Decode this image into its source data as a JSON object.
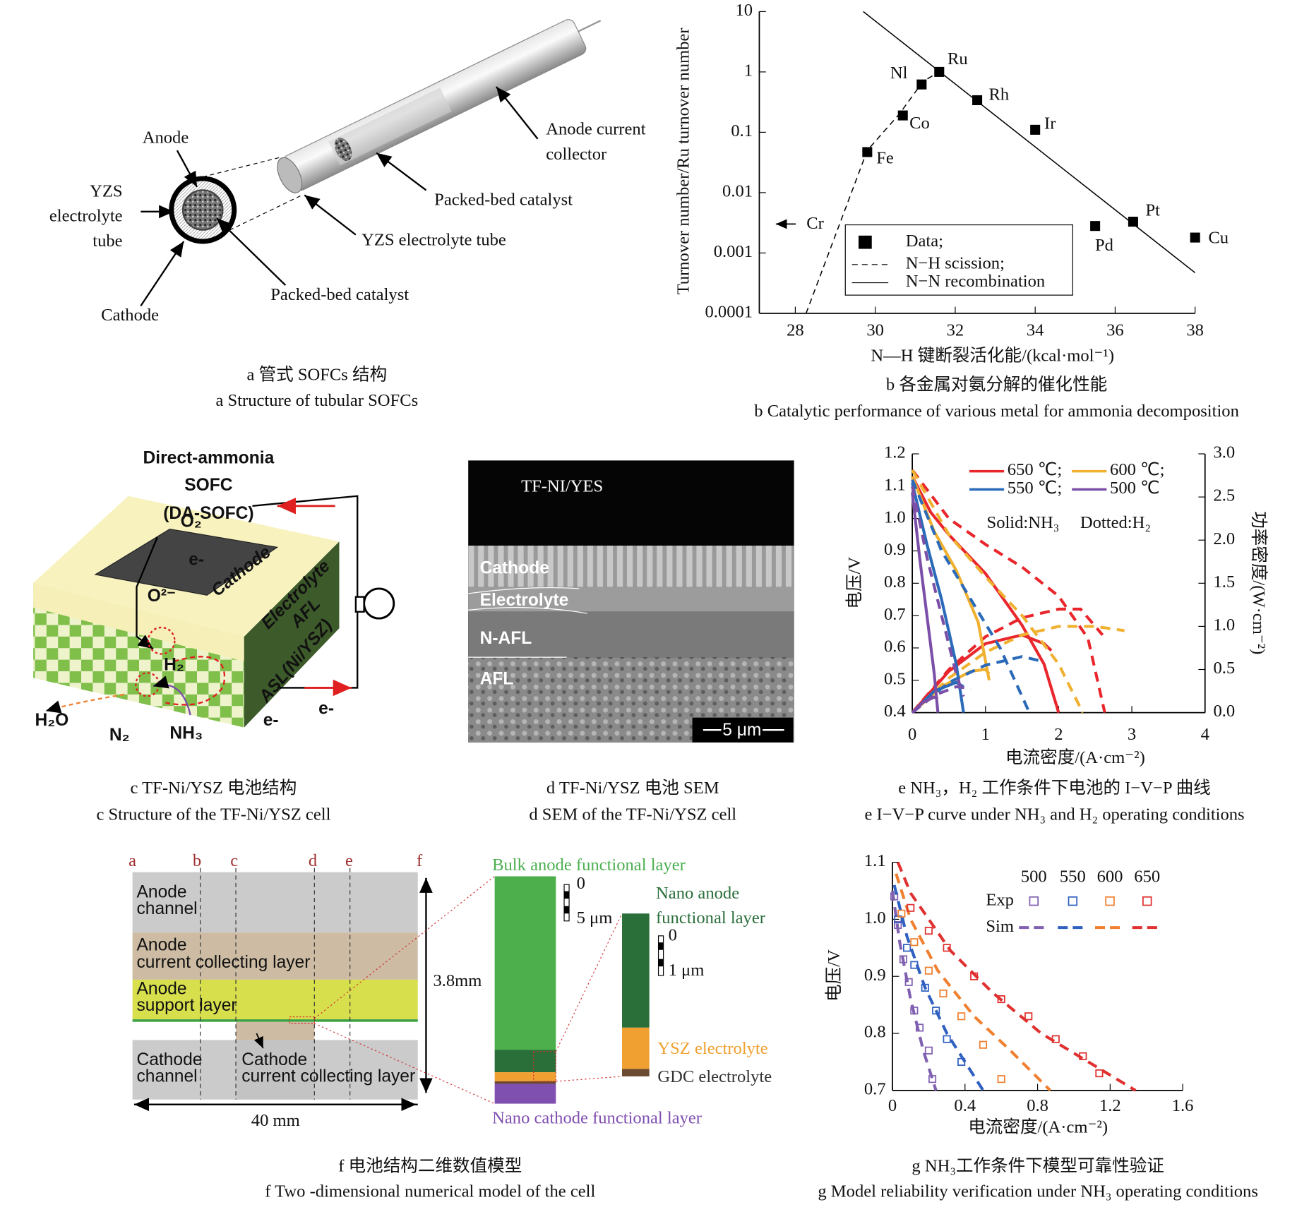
{
  "panels": {
    "a": {
      "labels": [
        "Anode",
        "YZS",
        "electrolyte",
        "tube",
        "Cathode",
        "Anode current",
        "collector",
        "Packed-bed catalyst",
        "YZS electrolyte tube",
        "Packed-bed catalyst"
      ],
      "caption_zh": "a  管式 SOFCs 结构",
      "caption_en": "a  Structure of tubular SOFCs"
    },
    "c": {
      "labels": [
        "Direct-ammonia",
        "SOFC",
        "(DA-SOFC)",
        "O₂",
        "e-",
        "Cathode",
        "Electrolyte",
        "AFL",
        "ASL(Ni/YSZ)",
        "O²⁻",
        "H₂",
        "H₂O",
        "N₂",
        "NH₃",
        "e-",
        "e-"
      ],
      "caption_zh": "c  TF-Ni/YSZ 电池结构",
      "caption_en": "c  Structure of the TF-Ni/YSZ cell"
    },
    "d": {
      "labels": [
        "TF-NI/YES",
        "Cathode",
        "Electrolyte",
        "N-AFL",
        "AFL",
        "5 μm"
      ],
      "caption_zh": "d  TF-Ni/YSZ 电池 SEM",
      "caption_en": "d  SEM of the TF-Ni/YSZ cell"
    },
    "f": {
      "letters": [
        "a",
        "b",
        "c",
        "d",
        "e",
        "f"
      ],
      "labels": [
        "Anode",
        "channel",
        "Anode",
        "current collecting layer",
        "Anode",
        "support layer",
        "Cathode",
        "channel",
        "Cathode",
        "current collecting layer",
        "3.8mm",
        "40 mm",
        "Bulk anode functional layer",
        "0",
        "5 μm",
        "Nano anode",
        "functional layer",
        "0",
        "1 μm",
        "YSZ electrolyte",
        "GDC electrolyte",
        "Nano cathode functional layer"
      ],
      "caption_zh": "f  电池结构二维数值模型",
      "caption_en": "f  Two -dimensional numerical model of the cell"
    }
  },
  "chart_data": [
    {
      "type": "scatter",
      "caption_zh": "b  各金属对氨分解的催化性能",
      "caption_en": "b  Catalytic performance of various metal for ammonia decomposition",
      "x_axis_label": "N—H 键断裂活化能/(kcal·mol⁻¹)",
      "y_axis_label": "Turnover number/Ru turnover number",
      "annotation": "Cr",
      "xlim": [
        27.1,
        38
      ],
      "xticks": [
        28,
        30,
        32,
        34,
        36,
        38
      ],
      "ylim": [
        0.0001,
        10
      ],
      "log_y": true,
      "yticks": [
        10,
        1,
        0.1,
        0.01,
        0.001,
        0.0001
      ],
      "series": [
        {
          "name": "Data;",
          "marker": "square",
          "color": "#000000",
          "x": [
            29.8,
            30.69,
            31.16,
            31.6,
            32.55,
            34,
            35.5,
            36.45,
            38
          ],
          "values": [
            0.047,
            0.19,
            0.62,
            1,
            0.34,
            0.11,
            0.0028,
            0.0033,
            0.0018
          ],
          "labels": [
            "Fe",
            "Co",
            "Nl",
            "Ru",
            "Rh",
            "Ir",
            "Pd",
            "Pt",
            "Cu"
          ]
        },
        {
          "name": "N−H scission;",
          "style": "dashed",
          "color": "#000000",
          "x": [
            28.27,
            29.8,
            30.6,
            31.2,
            31.6
          ],
          "values": [
            0.0001,
            0.05,
            0.2,
            0.7,
            1
          ]
        },
        {
          "name": "N−N recombination",
          "style": "solid",
          "color": "#000000",
          "x": [
            29.7,
            38
          ],
          "values": [
            10,
            0.00047
          ]
        }
      ]
    },
    {
      "type": "line",
      "caption_zh": "e  NH₃，H₂ 工作条件下电池的 I−V−P 曲线",
      "caption_en": "e  I−V−P curve under NH₃ and H₂ operating conditions",
      "x_axis_label": "电流密度/(A·cm⁻²)",
      "y_axis_label": "电压/V",
      "y2_axis_label": "功率密度/(W·cm⁻²)",
      "annotations": [
        "Solid:NH₃",
        "Dotted:H₂"
      ],
      "xlim": [
        0,
        4
      ],
      "xticks": [
        0,
        1,
        2,
        3,
        4
      ],
      "ylim": [
        0.4,
        1.2
      ],
      "yticks": [
        0.4,
        0.5,
        0.6,
        0.7,
        0.8,
        0.9,
        {
          "value": 1.0,
          "label": "1.0"
        },
        1.1,
        1.2
      ],
      "y2lim": [
        0,
        3
      ],
      "y2ticks": [
        {
          "value": 0,
          "label": "0.0"
        },
        0.5,
        {
          "value": 1,
          "label": "1.0"
        },
        1.5,
        {
          "value": 2,
          "label": "2.0"
        },
        2.5,
        {
          "value": 3,
          "label": "3.0"
        }
      ],
      "series": [
        {
          "name": "650 ℃;",
          "color": "#e8262c",
          "curves": [
            {
              "style": "solid",
              "x": [
                0,
                0.25,
                0.5,
                1.0,
                1.5,
                1.8,
                2.0
              ],
              "values": [
                1.13,
                1.02,
                0.95,
                0.83,
                0.67,
                0.55,
                0.4
              ]
            },
            {
              "style": "dashed",
              "x": [
                0,
                0.5,
                1.0,
                1.5,
                2.0,
                2.4,
                2.63
              ],
              "values": [
                1.15,
                1.0,
                0.92,
                0.85,
                0.76,
                0.63,
                0.4
              ]
            },
            {
              "style": "solid",
              "axis": "y2",
              "x": [
                0,
                0.5,
                1.0,
                1.5,
                1.8,
                1.9
              ],
              "values": [
                0,
                0.48,
                0.8,
                0.9,
                0.8,
                0.72
              ]
            },
            {
              "style": "dashed",
              "axis": "y2",
              "x": [
                0,
                0.5,
                1.0,
                1.5,
                2.0,
                2.3,
                2.6
              ],
              "values": [
                0,
                0.5,
                0.88,
                1.1,
                1.2,
                1.2,
                0.9
              ]
            }
          ]
        },
        {
          "name": "600 ℃;",
          "color": "#f0b030",
          "curves": [
            {
              "style": "solid",
              "x": [
                0,
                0.3,
                0.6,
                0.9,
                1.05
              ],
              "values": [
                1.13,
                0.96,
                0.84,
                0.68,
                0.5
              ]
            },
            {
              "style": "dashed",
              "x": [
                0,
                0.5,
                1.0,
                1.5,
                2.0,
                2.33
              ],
              "values": [
                1.15,
                0.95,
                0.82,
                0.7,
                0.55,
                0.4
              ]
            },
            {
              "style": "solid",
              "axis": "y2",
              "x": [
                0,
                0.4,
                0.8,
                1.0,
                1.05
              ],
              "values": [
                0,
                0.3,
                0.48,
                0.5,
                0.45
              ]
            },
            {
              "style": "dashed",
              "axis": "y2",
              "x": [
                0,
                0.5,
                1.0,
                1.5,
                2.0,
                2.5,
                2.9
              ],
              "values": [
                0,
                0.4,
                0.7,
                0.9,
                1.0,
                1.0,
                0.95
              ]
            }
          ]
        },
        {
          "name": "550 ℃;",
          "color": "#2a6ab8",
          "curves": [
            {
              "style": "solid",
              "x": [
                0,
                0.2,
                0.4,
                0.6,
                0.7
              ],
              "values": [
                1.11,
                0.92,
                0.75,
                0.55,
                0.4
              ]
            },
            {
              "style": "dashed",
              "x": [
                0,
                0.4,
                0.8,
                1.2,
                1.6
              ],
              "values": [
                1.12,
                0.9,
                0.75,
                0.6,
                0.4
              ]
            },
            {
              "style": "solid",
              "axis": "y2",
              "x": [
                0,
                0.3,
                0.6,
                0.7
              ],
              "values": [
                0,
                0.25,
                0.35,
                0.3
              ]
            },
            {
              "style": "dashed",
              "axis": "y2",
              "x": [
                0,
                0.5,
                1.0,
                1.5,
                1.75
              ],
              "values": [
                0,
                0.35,
                0.55,
                0.65,
                0.6
              ]
            }
          ]
        },
        {
          "name": "500 ℃",
          "color": "#7b4fa8",
          "curves": [
            {
              "style": "solid",
              "x": [
                0,
                0.1,
                0.2,
                0.3,
                0.35
              ],
              "values": [
                1.08,
                0.88,
                0.7,
                0.52,
                0.4
              ]
            },
            {
              "style": "dashed",
              "x": [
                0,
                0.2,
                0.4,
                0.6,
                0.7
              ],
              "values": [
                1.1,
                0.88,
                0.7,
                0.52,
                0.45
              ]
            },
            {
              "style": "solid",
              "axis": "y2",
              "x": [
                0,
                0.15,
                0.3,
                0.35
              ],
              "values": [
                0,
                0.12,
                0.18,
                0.16
              ]
            },
            {
              "style": "dashed",
              "axis": "y2",
              "x": [
                0,
                0.3,
                0.6,
                0.8
              ],
              "values": [
                0,
                0.2,
                0.3,
                0.28
              ]
            }
          ]
        }
      ]
    },
    {
      "type": "line",
      "caption_zh": "g  NH₃工作条件下模型可靠性验证",
      "caption_en": "g   Model reliability verification under NH₃ operating conditions",
      "x_axis_label": "电流密度/(A·cm⁻²)",
      "y_axis_label": "电压/V",
      "legend_rows": [
        "Exp",
        "Sim"
      ],
      "xlim": [
        0,
        1.6
      ],
      "xticks": [
        0,
        0.4,
        0.8,
        1.2,
        1.6
      ],
      "ylim": [
        0.7,
        1.1
      ],
      "yticks": [
        0.7,
        0.8,
        0.9,
        {
          "value": 1.0,
          "label": "1.0"
        },
        1.1
      ],
      "series": [
        {
          "name": "500",
          "color": "#8060b0",
          "curves": [
            {
              "marker": "square-open",
              "x": [
                0.01,
                0.03,
                0.06,
                0.09,
                0.12,
                0.15,
                0.2,
                0.22
              ],
              "values": [
                1.04,
                0.99,
                0.93,
                0.89,
                0.84,
                0.81,
                0.77,
                0.72
              ]
            },
            {
              "style": "dashed",
              "x": [
                0,
                0.04,
                0.1,
                0.17,
                0.24
              ],
              "values": [
                1.05,
                0.96,
                0.86,
                0.77,
                0.7
              ]
            }
          ]
        },
        {
          "name": "550",
          "color": "#3060c0",
          "curves": [
            {
              "marker": "square-open",
              "x": [
                0.03,
                0.08,
                0.12,
                0.18,
                0.24,
                0.3,
                0.38
              ],
              "values": [
                1.0,
                0.95,
                0.92,
                0.88,
                0.84,
                0.79,
                0.75
              ]
            },
            {
              "style": "dashed",
              "x": [
                0.01,
                0.08,
                0.18,
                0.3,
                0.4,
                0.5
              ],
              "values": [
                1.06,
                0.97,
                0.88,
                0.8,
                0.75,
                0.7
              ]
            }
          ]
        },
        {
          "name": "600",
          "color": "#f08030",
          "curves": [
            {
              "marker": "square-open",
              "x": [
                0.05,
                0.12,
                0.2,
                0.28,
                0.38,
                0.5,
                0.6
              ],
              "values": [
                1.01,
                0.96,
                0.91,
                0.87,
                0.83,
                0.78,
                0.72
              ]
            },
            {
              "style": "dashed",
              "x": [
                0.02,
                0.1,
                0.25,
                0.45,
                0.65,
                0.87
              ],
              "values": [
                1.08,
                1.0,
                0.91,
                0.83,
                0.77,
                0.7
              ]
            }
          ]
        },
        {
          "name": "650",
          "color": "#e03030",
          "curves": [
            {
              "marker": "square-open",
              "x": [
                0.1,
                0.2,
                0.3,
                0.45,
                0.6,
                0.75,
                0.9,
                1.05,
                1.14
              ],
              "values": [
                1.02,
                0.98,
                0.95,
                0.9,
                0.86,
                0.83,
                0.79,
                0.76,
                0.73
              ]
            },
            {
              "style": "dashed",
              "x": [
                0.03,
                0.1,
                0.32,
                0.55,
                0.82,
                1.34
              ],
              "values": [
                1.1,
                1.046,
                0.945,
                0.872,
                0.8,
                0.7
              ]
            }
          ]
        }
      ]
    }
  ]
}
